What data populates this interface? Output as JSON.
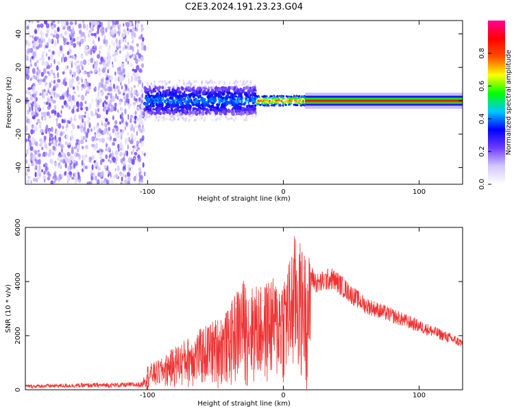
{
  "title": "C2E3.2024.191.23.23.G04",
  "chart_data": [
    {
      "type": "heatmap",
      "title": "",
      "xlabel": "Height of straight line (km)",
      "ylabel": "Frequency (Hz)",
      "xlim": [
        -190,
        132
      ],
      "ylim": [
        -50,
        48
      ],
      "xticks": [
        -100,
        0,
        100
      ],
      "yticks": [
        -40,
        -20,
        0,
        20,
        40
      ],
      "regions": [
        {
          "name": "noise",
          "x": [
            -190,
            -102
          ],
          "y": [
            -50,
            48
          ],
          "amplitude": 0.1
        },
        {
          "name": "spread-signal",
          "x": [
            -102,
            -20
          ],
          "y": [
            -8,
            8
          ],
          "amplitude": 0.25
        },
        {
          "name": "transition",
          "x": [
            -20,
            16
          ],
          "y": [
            -3,
            3
          ],
          "amplitude": 0.6
        },
        {
          "name": "carrier-line",
          "x": [
            16,
            132
          ],
          "y": [
            -1,
            1
          ],
          "amplitude": 0.9
        }
      ],
      "colorbar": {
        "label": "Normalized spectral amplitude",
        "range": [
          0,
          1
        ],
        "ticks": [
          "0.0",
          "0.2",
          "0.4",
          "0.6",
          "0.8"
        ],
        "colors": [
          "#ffffff",
          "#d2c8ff",
          "#6e3cff",
          "#0000ff",
          "#00c8ff",
          "#00ff00",
          "#ffff00",
          "#ff5000",
          "#ff0000",
          "#ff0096"
        ]
      },
      "grid": false
    },
    {
      "type": "line",
      "title": "",
      "xlabel": "Height of straight line (km)",
      "ylabel": "SNR (10 * v/v)",
      "xlim": [
        -190,
        132
      ],
      "ylim": [
        0,
        6000
      ],
      "xticks": [
        -100,
        0,
        100
      ],
      "yticks": [
        0,
        2000,
        4000,
        6000
      ],
      "series": [
        {
          "color": "#ee3333",
          "x": [
            -190,
            -160,
            -130,
            -104,
            -100,
            -90,
            -80,
            -70,
            -60,
            -50,
            -40,
            -35,
            -30,
            -25,
            -20,
            -15,
            -10,
            -5,
            0,
            5,
            8,
            12,
            15,
            20,
            25,
            30,
            35,
            40,
            50,
            60,
            75,
            90,
            100,
            110,
            120,
            132
          ],
          "y": [
            150,
            180,
            200,
            220,
            800,
            1000,
            1400,
            1700,
            2000,
            2300,
            2600,
            3200,
            3600,
            3300,
            3400,
            3300,
            3700,
            3500,
            3800,
            4300,
            5000,
            4800,
            4500,
            4300,
            4000,
            4100,
            4200,
            4050,
            3600,
            3200,
            2900,
            2600,
            2400,
            2200,
            2000,
            1750
          ]
        }
      ],
      "grid": false
    }
  ]
}
